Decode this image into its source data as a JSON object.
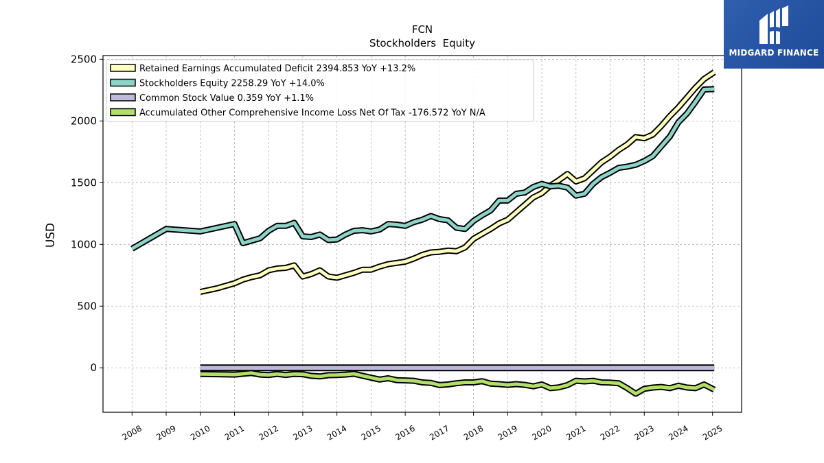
{
  "brand": {
    "name": "MIDGARD FINANCE",
    "bg_color": "#2756a8",
    "icon": "midgard-logo-icon"
  },
  "chart_data": {
    "type": "line",
    "title": "FCN",
    "subtitle": "Stockholders  Equity",
    "xlabel": "",
    "ylabel": "USD",
    "xlim": [
      2007.15,
      2025.85
    ],
    "ylim": [
      -360,
      2530
    ],
    "x_ticks": [
      "2008",
      "2009",
      "2010",
      "2011",
      "2012",
      "2013",
      "2014",
      "2015",
      "2016",
      "2017",
      "2018",
      "2019",
      "2020",
      "2021",
      "2022",
      "2023",
      "2024",
      "2025"
    ],
    "y_ticks": [
      0,
      500,
      1000,
      1500,
      2000,
      2500
    ],
    "grid": true,
    "legend_position": "top-left",
    "series": [
      {
        "name": "Retained Earnings Accumulated Deficit",
        "legend": "Retained Earnings Accumulated Deficit  2394.853 YoY +13.2%",
        "color": "#ffffc0",
        "points": [
          [
            2010.0,
            615
          ],
          [
            2010.5,
            645
          ],
          [
            2011.0,
            685
          ],
          [
            2011.25,
            715
          ],
          [
            2011.5,
            735
          ],
          [
            2011.75,
            750
          ],
          [
            2012.0,
            790
          ],
          [
            2012.25,
            805
          ],
          [
            2012.5,
            810
          ],
          [
            2012.75,
            830
          ],
          [
            2013.0,
            740
          ],
          [
            2013.25,
            760
          ],
          [
            2013.5,
            790
          ],
          [
            2013.75,
            740
          ],
          [
            2014.0,
            730
          ],
          [
            2014.25,
            750
          ],
          [
            2014.5,
            770
          ],
          [
            2014.75,
            795
          ],
          [
            2015.0,
            795
          ],
          [
            2015.25,
            820
          ],
          [
            2015.5,
            840
          ],
          [
            2015.75,
            850
          ],
          [
            2016.0,
            860
          ],
          [
            2016.25,
            885
          ],
          [
            2016.5,
            915
          ],
          [
            2016.75,
            935
          ],
          [
            2017.0,
            940
          ],
          [
            2017.25,
            950
          ],
          [
            2017.5,
            945
          ],
          [
            2017.75,
            975
          ],
          [
            2018.0,
            1045
          ],
          [
            2018.25,
            1085
          ],
          [
            2018.5,
            1125
          ],
          [
            2018.75,
            1170
          ],
          [
            2019.0,
            1200
          ],
          [
            2019.25,
            1260
          ],
          [
            2019.5,
            1320
          ],
          [
            2019.75,
            1380
          ],
          [
            2020.0,
            1415
          ],
          [
            2020.25,
            1475
          ],
          [
            2020.5,
            1520
          ],
          [
            2020.75,
            1570
          ],
          [
            2021.0,
            1510
          ],
          [
            2021.25,
            1535
          ],
          [
            2021.5,
            1600
          ],
          [
            2021.75,
            1665
          ],
          [
            2022.0,
            1710
          ],
          [
            2022.25,
            1765
          ],
          [
            2022.5,
            1810
          ],
          [
            2022.75,
            1870
          ],
          [
            2023.0,
            1860
          ],
          [
            2023.25,
            1890
          ],
          [
            2023.5,
            1960
          ],
          [
            2023.75,
            2040
          ],
          [
            2024.0,
            2110
          ],
          [
            2024.25,
            2190
          ],
          [
            2024.5,
            2270
          ],
          [
            2024.75,
            2340
          ],
          [
            2025.05,
            2395
          ]
        ]
      },
      {
        "name": "Stockholders Equity",
        "legend": "Stockholders Equity  2258.29 YoY +14.0%",
        "color": "#8dd3c7",
        "points": [
          [
            2008.0,
            965
          ],
          [
            2009.0,
            1125
          ],
          [
            2010.0,
            1105
          ],
          [
            2011.0,
            1165
          ],
          [
            2011.25,
            1010
          ],
          [
            2011.5,
            1030
          ],
          [
            2011.75,
            1050
          ],
          [
            2012.0,
            1110
          ],
          [
            2012.25,
            1150
          ],
          [
            2012.5,
            1150
          ],
          [
            2012.75,
            1175
          ],
          [
            2013.0,
            1065
          ],
          [
            2013.25,
            1060
          ],
          [
            2013.5,
            1080
          ],
          [
            2013.75,
            1035
          ],
          [
            2014.0,
            1040
          ],
          [
            2014.25,
            1080
          ],
          [
            2014.5,
            1110
          ],
          [
            2014.75,
            1115
          ],
          [
            2015.0,
            1105
          ],
          [
            2015.25,
            1120
          ],
          [
            2015.5,
            1165
          ],
          [
            2015.75,
            1160
          ],
          [
            2016.0,
            1150
          ],
          [
            2016.25,
            1180
          ],
          [
            2016.5,
            1200
          ],
          [
            2016.75,
            1230
          ],
          [
            2017.0,
            1205
          ],
          [
            2017.25,
            1195
          ],
          [
            2017.5,
            1135
          ],
          [
            2017.75,
            1125
          ],
          [
            2018.0,
            1190
          ],
          [
            2018.25,
            1235
          ],
          [
            2018.5,
            1275
          ],
          [
            2018.75,
            1355
          ],
          [
            2019.0,
            1355
          ],
          [
            2019.25,
            1410
          ],
          [
            2019.5,
            1420
          ],
          [
            2019.75,
            1465
          ],
          [
            2020.0,
            1490
          ],
          [
            2020.25,
            1470
          ],
          [
            2020.5,
            1475
          ],
          [
            2020.75,
            1460
          ],
          [
            2021.0,
            1395
          ],
          [
            2021.25,
            1410
          ],
          [
            2021.5,
            1490
          ],
          [
            2021.75,
            1545
          ],
          [
            2022.0,
            1580
          ],
          [
            2022.25,
            1620
          ],
          [
            2022.5,
            1630
          ],
          [
            2022.75,
            1645
          ],
          [
            2023.0,
            1675
          ],
          [
            2023.25,
            1715
          ],
          [
            2023.5,
            1795
          ],
          [
            2023.75,
            1875
          ],
          [
            2024.0,
            1990
          ],
          [
            2024.25,
            2060
          ],
          [
            2024.5,
            2155
          ],
          [
            2024.75,
            2255
          ],
          [
            2025.05,
            2258
          ]
        ]
      },
      {
        "name": "Common Stock Value",
        "legend": "Common Stock Value  0.359 YoY +1.1%",
        "color": "#bebada",
        "points": [
          [
            2010.0,
            0.3
          ],
          [
            2025.05,
            0.36
          ]
        ]
      },
      {
        "name": "Accumulated Other Comprehensive Income Loss Net Of Tax",
        "legend": "Accumulated Other Comprehensive Income Loss Net Of Tax  -176.572 YoY N/A",
        "color": "#b3de69",
        "points": [
          [
            2010.0,
            -50
          ],
          [
            2010.5,
            -52
          ],
          [
            2011.0,
            -55
          ],
          [
            2011.25,
            -48
          ],
          [
            2011.5,
            -42
          ],
          [
            2011.75,
            -55
          ],
          [
            2012.0,
            -58
          ],
          [
            2012.25,
            -50
          ],
          [
            2012.5,
            -58
          ],
          [
            2012.75,
            -50
          ],
          [
            2013.0,
            -52
          ],
          [
            2013.25,
            -65
          ],
          [
            2013.5,
            -70
          ],
          [
            2013.75,
            -60
          ],
          [
            2014.0,
            -58
          ],
          [
            2014.25,
            -55
          ],
          [
            2014.5,
            -48
          ],
          [
            2014.75,
            -65
          ],
          [
            2015.0,
            -80
          ],
          [
            2015.25,
            -95
          ],
          [
            2015.5,
            -85
          ],
          [
            2015.75,
            -100
          ],
          [
            2016.0,
            -102
          ],
          [
            2016.25,
            -105
          ],
          [
            2016.5,
            -118
          ],
          [
            2016.75,
            -122
          ],
          [
            2017.0,
            -140
          ],
          [
            2017.25,
            -135
          ],
          [
            2017.5,
            -125
          ],
          [
            2017.75,
            -118
          ],
          [
            2018.0,
            -118
          ],
          [
            2018.25,
            -108
          ],
          [
            2018.5,
            -128
          ],
          [
            2018.75,
            -132
          ],
          [
            2019.0,
            -138
          ],
          [
            2019.25,
            -132
          ],
          [
            2019.5,
            -138
          ],
          [
            2019.75,
            -150
          ],
          [
            2020.0,
            -135
          ],
          [
            2020.25,
            -165
          ],
          [
            2020.5,
            -158
          ],
          [
            2020.75,
            -140
          ],
          [
            2021.0,
            -105
          ],
          [
            2021.25,
            -110
          ],
          [
            2021.5,
            -105
          ],
          [
            2021.75,
            -118
          ],
          [
            2022.0,
            -120
          ],
          [
            2022.25,
            -125
          ],
          [
            2022.5,
            -165
          ],
          [
            2022.75,
            -210
          ],
          [
            2023.0,
            -170
          ],
          [
            2023.25,
            -160
          ],
          [
            2023.5,
            -155
          ],
          [
            2023.75,
            -165
          ],
          [
            2024.0,
            -145
          ],
          [
            2024.25,
            -160
          ],
          [
            2024.5,
            -165
          ],
          [
            2024.75,
            -135
          ],
          [
            2025.05,
            -177
          ]
        ]
      }
    ]
  }
}
